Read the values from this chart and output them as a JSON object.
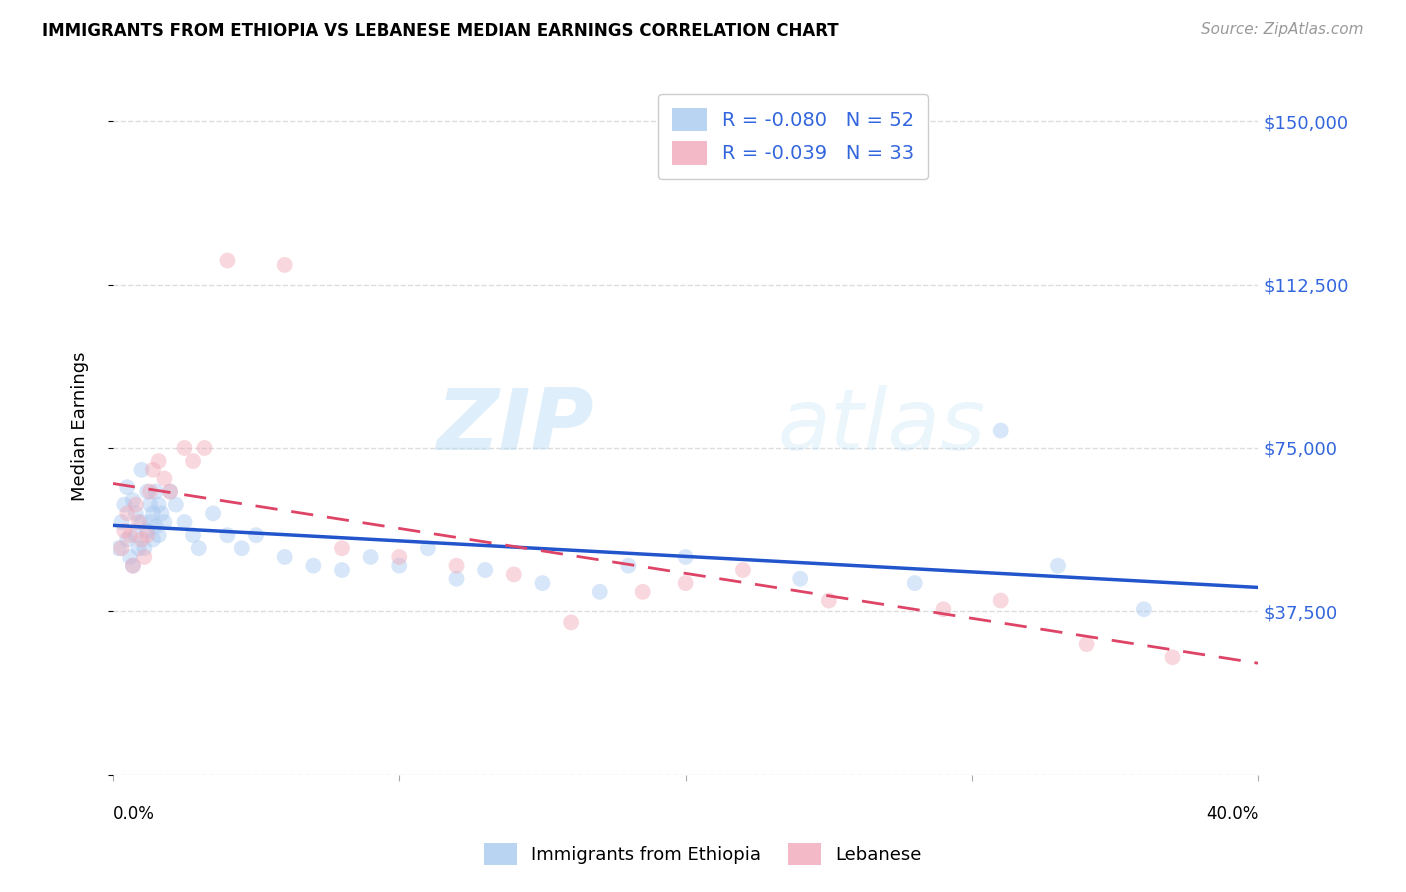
{
  "title": "IMMIGRANTS FROM ETHIOPIA VS LEBANESE MEDIAN EARNINGS CORRELATION CHART",
  "source": "Source: ZipAtlas.com",
  "ylabel": "Median Earnings",
  "yticks": [
    0,
    37500,
    75000,
    112500,
    150000
  ],
  "ytick_labels": [
    "",
    "$37,500",
    "$75,000",
    "$112,500",
    "$150,000"
  ],
  "xlim": [
    0.0,
    0.4
  ],
  "ylim": [
    0,
    160000
  ],
  "color_ethiopia": "#A8C8F0",
  "color_lebanese": "#F0A8B8",
  "line_color_ethiopia": "#2255CC",
  "line_color_lebanese": "#DD4466",
  "ethiopia_x": [
    0.002,
    0.003,
    0.004,
    0.005,
    0.005,
    0.006,
    0.007,
    0.007,
    0.008,
    0.008,
    0.009,
    0.01,
    0.01,
    0.011,
    0.012,
    0.012,
    0.013,
    0.013,
    0.014,
    0.014,
    0.015,
    0.015,
    0.016,
    0.016,
    0.017,
    0.018,
    0.02,
    0.022,
    0.025,
    0.028,
    0.03,
    0.035,
    0.04,
    0.045,
    0.05,
    0.06,
    0.07,
    0.08,
    0.09,
    0.1,
    0.11,
    0.12,
    0.13,
    0.15,
    0.17,
    0.18,
    0.2,
    0.24,
    0.28,
    0.31,
    0.33,
    0.36
  ],
  "ethiopia_y": [
    52000,
    58000,
    62000,
    66000,
    54000,
    50000,
    48000,
    63000,
    55000,
    60000,
    52000,
    70000,
    58000,
    52000,
    65000,
    56000,
    62000,
    58000,
    54000,
    60000,
    65000,
    57000,
    62000,
    55000,
    60000,
    58000,
    65000,
    62000,
    58000,
    55000,
    52000,
    60000,
    55000,
    52000,
    55000,
    50000,
    48000,
    47000,
    50000,
    48000,
    52000,
    45000,
    47000,
    44000,
    42000,
    48000,
    50000,
    45000,
    44000,
    79000,
    48000,
    38000
  ],
  "lebanese_x": [
    0.003,
    0.004,
    0.005,
    0.006,
    0.007,
    0.008,
    0.009,
    0.01,
    0.011,
    0.012,
    0.013,
    0.014,
    0.016,
    0.018,
    0.02,
    0.025,
    0.028,
    0.032,
    0.04,
    0.06,
    0.08,
    0.1,
    0.12,
    0.14,
    0.16,
    0.185,
    0.2,
    0.22,
    0.25,
    0.29,
    0.31,
    0.34,
    0.37
  ],
  "lebanese_y": [
    52000,
    56000,
    60000,
    55000,
    48000,
    62000,
    58000,
    54000,
    50000,
    55000,
    65000,
    70000,
    72000,
    68000,
    65000,
    75000,
    72000,
    75000,
    118000,
    117000,
    52000,
    50000,
    48000,
    46000,
    35000,
    42000,
    44000,
    47000,
    40000,
    38000,
    40000,
    30000,
    27000
  ],
  "background_color": "#FFFFFF",
  "grid_color": "#DDDDDD",
  "watermark_zip": "ZIP",
  "watermark_atlas": "atlas",
  "marker_size": 130,
  "alpha": 0.45,
  "legend_label_eth": "R = -0.080   N = 52",
  "legend_label_leb": "R = -0.039   N = 33",
  "legend_text_color": "#3366DD",
  "bottom_legend_eth": "Immigrants from Ethiopia",
  "bottom_legend_leb": "Lebanese"
}
